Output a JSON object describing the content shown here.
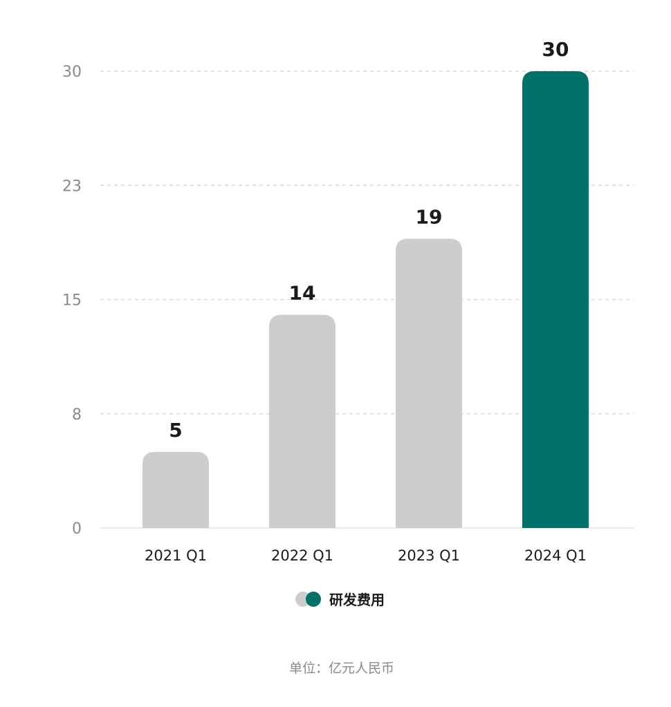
{
  "chart_data": {
    "type": "bar",
    "categories": [
      "2021 Q1",
      "2022 Q1",
      "2023 Q1",
      "2024 Q1"
    ],
    "series": [
      {
        "name": "研发费用",
        "values": [
          5,
          14,
          19,
          30
        ]
      }
    ],
    "value_labels": [
      "5",
      "14",
      "19",
      "30"
    ],
    "y_ticks": [
      "0",
      "8",
      "15",
      "23",
      "30"
    ],
    "y_tick_values": [
      0,
      7.5,
      15,
      22.5,
      30
    ],
    "ylim": [
      0,
      30
    ],
    "grid": true,
    "legend": "bottom-center",
    "highlight_index": 3,
    "colors": {
      "default_bar": "#cdcdcd",
      "highlight_bar": "#00726a",
      "grid": "#d9d9d9",
      "axis": "#e3e3e3"
    }
  },
  "unit_note": "单位：亿元人民币"
}
